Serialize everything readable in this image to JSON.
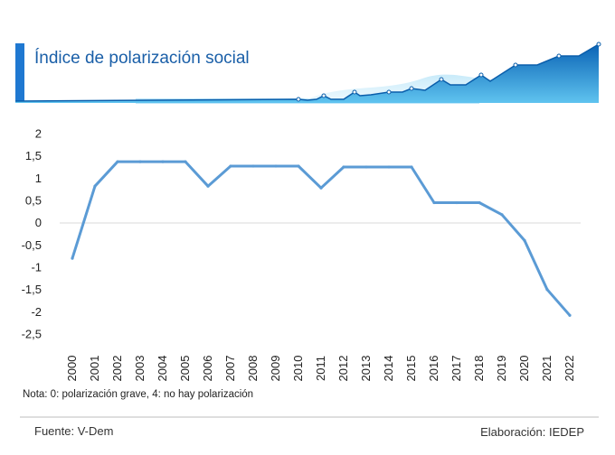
{
  "header": {
    "title": "Índice de polarización social"
  },
  "footer": {
    "note": "Nota: 0: polarización grave, 4: no hay polarización",
    "source": "Fuente: V-Dem",
    "credit": "Elaboración: IEDEP"
  },
  "colors": {
    "line": "#5b9bd5",
    "title": "#1a5fa8",
    "header_band": "#0a63b5",
    "header_accent": "#1f78d1"
  },
  "chart_data": {
    "type": "line",
    "title": "Índice de polarización social",
    "xlabel": "",
    "ylabel": "",
    "ylim": [
      -2.5,
      2
    ],
    "yticks": [
      {
        "value": 2,
        "label": "2"
      },
      {
        "value": 1.5,
        "label": "1,5"
      },
      {
        "value": 1,
        "label": "1"
      },
      {
        "value": 0.5,
        "label": "0,5"
      },
      {
        "value": 0,
        "label": "0"
      },
      {
        "value": -0.5,
        "label": "-0,5"
      },
      {
        "value": -1,
        "label": "-1"
      },
      {
        "value": -1.5,
        "label": "-1,5"
      },
      {
        "value": -2,
        "label": "-2"
      },
      {
        "value": -2.5,
        "label": "-2,5"
      }
    ],
    "categories": [
      "2000",
      "2001",
      "2002",
      "2003",
      "2004",
      "2005",
      "2006",
      "2007",
      "2008",
      "2009",
      "2010",
      "2011",
      "2012",
      "2013",
      "2014",
      "2015",
      "2016",
      "2017",
      "2018",
      "2019",
      "2020",
      "2021",
      "2022"
    ],
    "series": [
      {
        "name": "Índice de polarización social",
        "values": [
          -0.8,
          0.82,
          1.37,
          1.37,
          1.37,
          1.37,
          0.82,
          1.27,
          1.27,
          1.27,
          1.27,
          0.78,
          1.25,
          1.25,
          1.25,
          1.25,
          0.45,
          0.45,
          0.45,
          0.18,
          -0.4,
          -1.5,
          -2.08
        ]
      }
    ],
    "grid": false,
    "legend": "none"
  }
}
